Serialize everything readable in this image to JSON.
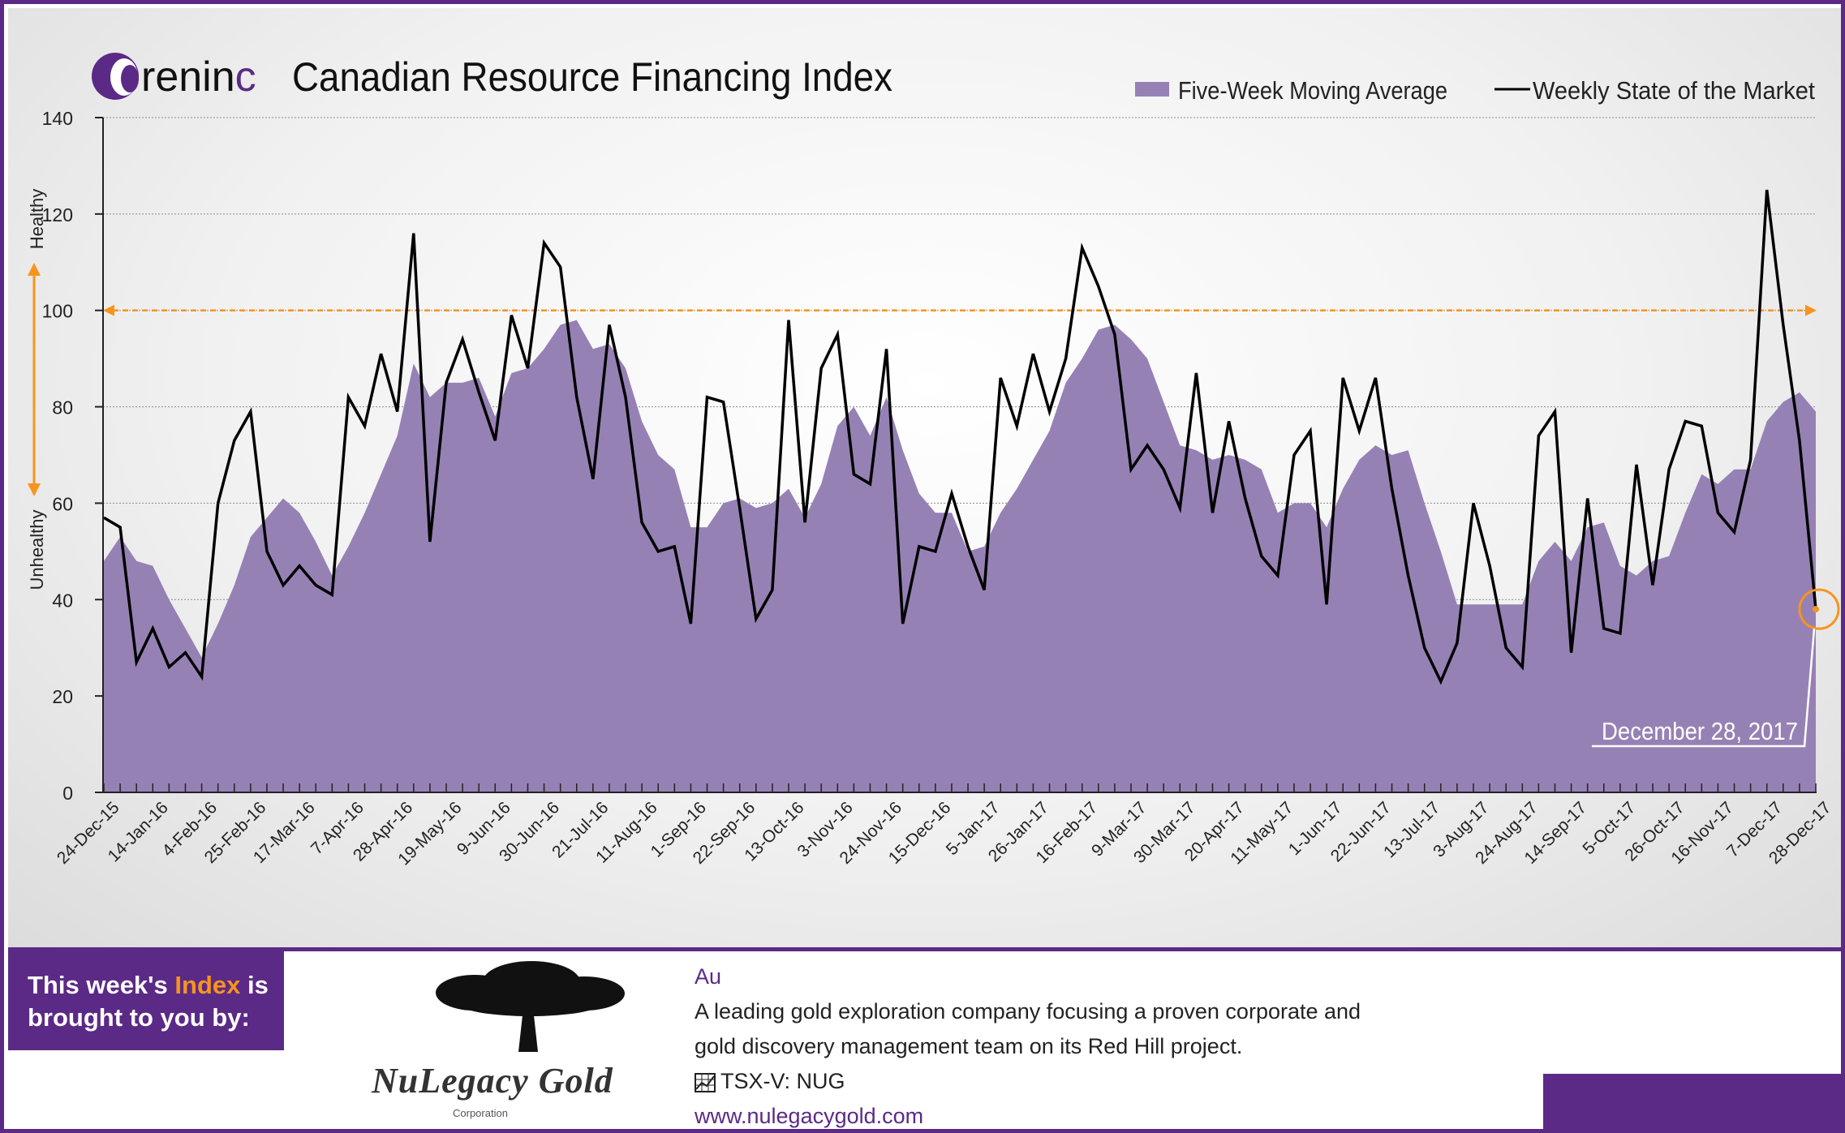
{
  "header": {
    "logo_text": "renin",
    "logo_suffix": "c",
    "title": "Canadian Resource Financing Index"
  },
  "chart_data": {
    "type": "area",
    "title": "Canadian Resource Financing Index",
    "ylim": [
      0,
      140
    ],
    "yticks": [
      0,
      20,
      40,
      60,
      80,
      100,
      120,
      140
    ],
    "grid": true,
    "legend_placement": "top-right",
    "threshold": 100,
    "zone_labels": {
      "top": "Healthy",
      "bottom": "Unhealthy"
    },
    "x_tick_labels": [
      "24-Dec-15",
      "14-Jan-16",
      "4-Feb-16",
      "25-Feb-16",
      "17-Mar-16",
      "7-Apr-16",
      "28-Apr-16",
      "19-May-16",
      "9-Jun-16",
      "30-Jun-16",
      "21-Jul-16",
      "11-Aug-16",
      "1-Sep-16",
      "22-Sep-16",
      "13-Oct-16",
      "3-Nov-16",
      "24-Nov-16",
      "15-Dec-16",
      "5-Jan-17",
      "26-Jan-17",
      "16-Feb-17",
      "9-Mar-17",
      "30-Mar-17",
      "20-Apr-17",
      "11-May-17",
      "1-Jun-17",
      "22-Jun-17",
      "13-Jul-17",
      "3-Aug-17",
      "24-Aug-17",
      "14-Sep-17",
      "5-Oct-17",
      "26-Oct-17",
      "16-Nov-17",
      "7-Dec-17",
      "28-Dec-17"
    ],
    "series": [
      {
        "name": "Five-Week Moving Average",
        "style": "area",
        "color": "#9681b5",
        "values": [
          48,
          53,
          48,
          47,
          40,
          34,
          28,
          35,
          43,
          53,
          57,
          61,
          58,
          52,
          45,
          51,
          58,
          66,
          74,
          89,
          82,
          85,
          85,
          86,
          78,
          87,
          88,
          92,
          97,
          98,
          92,
          93,
          88,
          77,
          70,
          67,
          55,
          55,
          60,
          61,
          59,
          60,
          63,
          57,
          64,
          76,
          80,
          74,
          82,
          71,
          62,
          58,
          58,
          50,
          51,
          58,
          63,
          69,
          75,
          85,
          90,
          96,
          97,
          94,
          90,
          81,
          72,
          71,
          69,
          70,
          69,
          67,
          58,
          60,
          60,
          55,
          63,
          69,
          72,
          70,
          71,
          60,
          50,
          39,
          39,
          39,
          39,
          39,
          48,
          52,
          48,
          55,
          56,
          47,
          45,
          48,
          49,
          58,
          66,
          64,
          67,
          67,
          77,
          81,
          83,
          79
        ]
      },
      {
        "name": "Weekly State of the Market",
        "style": "line",
        "color": "#000000",
        "values": [
          57,
          55,
          27,
          34,
          26,
          29,
          24,
          60,
          73,
          79,
          50,
          43,
          47,
          43,
          41,
          82,
          76,
          91,
          79,
          116,
          52,
          85,
          94,
          83,
          73,
          99,
          88,
          114,
          109,
          82,
          65,
          97,
          82,
          56,
          50,
          51,
          35,
          82,
          81,
          59,
          36,
          42,
          98,
          56,
          88,
          95,
          66,
          64,
          92,
          35,
          51,
          50,
          62,
          51,
          42,
          86,
          76,
          91,
          79,
          90,
          113,
          105,
          95,
          67,
          72,
          67,
          59,
          87,
          58,
          77,
          61,
          49,
          45,
          70,
          75,
          39,
          86,
          75,
          86,
          63,
          45,
          30,
          23,
          31,
          60,
          47,
          30,
          26,
          74,
          79,
          29,
          61,
          34,
          33,
          68,
          43,
          67,
          77,
          76,
          58,
          54,
          69,
          125,
          97,
          73,
          38
        ]
      }
    ],
    "latest_point_label": "December 28, 2017",
    "latest_point_value": 38
  },
  "sponsor": {
    "intro_before": "This week's ",
    "intro_accent": "Index",
    "intro_after": " is",
    "intro_line2": "brought to you by:",
    "company_logo": "NuLegacy Gold",
    "company_logo_sub": "Corporation",
    "symbol": "Au",
    "description_line1": "A leading gold exploration company focusing a proven corporate and",
    "description_line2": "gold discovery management team on its Red Hill project.",
    "ticker": "TSX-V:  NUG",
    "website": "www.nulegacygold.com"
  }
}
